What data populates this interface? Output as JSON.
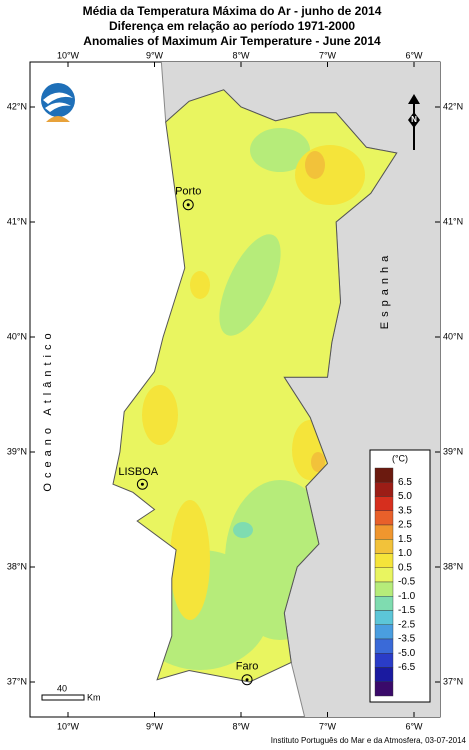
{
  "header": {
    "title": [
      "Média da Temperatura Máxima do Ar  - junho de 2014",
      "Diferença em relação ao período 1971-2000",
      "Anomalies of Maximum Air Temperature - June 2014"
    ]
  },
  "map": {
    "lon_ticks": [
      "10°W",
      "9°W",
      "8°W",
      "7°W",
      "6°W"
    ],
    "lat_ticks": [
      "42°N",
      "41°N",
      "40°N",
      "39°N",
      "38°N",
      "37°N"
    ],
    "cities": [
      "Porto",
      "LISBOA",
      "Faro"
    ],
    "sea_label": "Oceano Atlântico",
    "country_label": "Espanha",
    "scale_bar": {
      "value": "40",
      "unit": "Km"
    }
  },
  "legend": {
    "title": "(°C)",
    "labels": [
      "6.5",
      "5.0",
      "3.5",
      "2.5",
      "1.5",
      "1.0",
      "0.5",
      "-0.5",
      "-1.0",
      "-1.5",
      "-2.5",
      "-3.5",
      "-5.0",
      "-6.5"
    ],
    "colors": [
      "#6b1a0f",
      "#9c1d16",
      "#d62f1e",
      "#e8602a",
      "#f0962e",
      "#f2c23a",
      "#f5e43a",
      "#e9f560",
      "#b6ec7a",
      "#7fdcb0",
      "#5cc6d8",
      "#4a9ee0",
      "#3a6ad8",
      "#2a3cc8",
      "#1a1aa0",
      "#3a0a6a"
    ]
  },
  "footer": {
    "credit": "Instituto Português do Mar e da Atmosfera, 03-07-2014"
  }
}
